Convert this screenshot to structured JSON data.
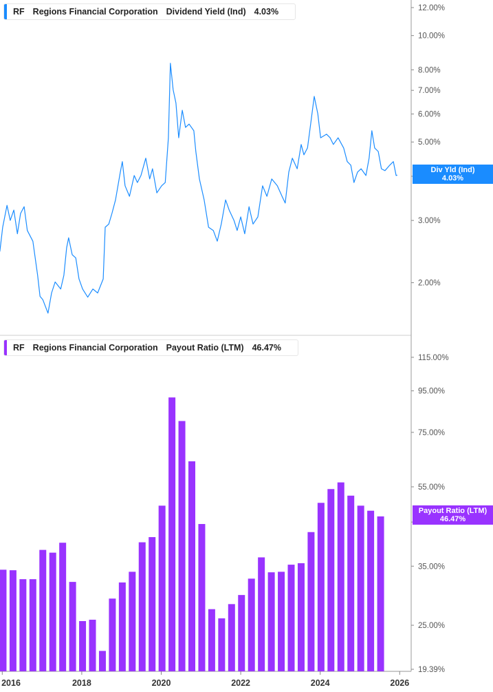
{
  "colors": {
    "yield_line": "#1a8cff",
    "payout_bars": "#9933ff",
    "axis": "#999999"
  },
  "top_legend": {
    "ticker": "RF",
    "company": "Regions Financial Corporation",
    "metric": "Dividend Yield (Ind)",
    "value": "4.03%"
  },
  "bottom_legend": {
    "ticker": "RF",
    "company": "Regions Financial Corporation",
    "metric": "Payout Ratio (LTM)",
    "value": "46.47%"
  },
  "top_tag": {
    "label": "Div Yld (Ind)",
    "value": "4.03%"
  },
  "bottom_tag": {
    "label": "Payout Ratio (LTM)",
    "value": "46.47%"
  },
  "chart_data": [
    {
      "type": "line",
      "series_label": "Dividend Yield (Ind)",
      "y_scale": "log",
      "y_unit": "%",
      "y_ticks": [
        "12.00%",
        "10.00%",
        "8.00%",
        "7.00%",
        "6.00%",
        "5.00%",
        "4.00%",
        "3.00%",
        "2.00%"
      ],
      "y_tick_values": [
        12,
        10,
        8,
        7,
        6,
        5,
        4,
        3,
        2
      ],
      "last_value": 4.03,
      "points": [
        [
          2015.94,
          2.45
        ],
        [
          2016.01,
          2.87
        ],
        [
          2016.12,
          3.31
        ],
        [
          2016.2,
          3.0
        ],
        [
          2016.29,
          3.21
        ],
        [
          2016.38,
          2.75
        ],
        [
          2016.46,
          3.14
        ],
        [
          2016.55,
          3.28
        ],
        [
          2016.63,
          2.81
        ],
        [
          2016.77,
          2.62
        ],
        [
          2016.89,
          2.1
        ],
        [
          2016.95,
          1.83
        ],
        [
          2017.02,
          1.79
        ],
        [
          2017.15,
          1.64
        ],
        [
          2017.24,
          1.87
        ],
        [
          2017.33,
          2.01
        ],
        [
          2017.47,
          1.92
        ],
        [
          2017.55,
          2.1
        ],
        [
          2017.62,
          2.51
        ],
        [
          2017.67,
          2.68
        ],
        [
          2017.76,
          2.4
        ],
        [
          2017.85,
          2.35
        ],
        [
          2017.93,
          2.05
        ],
        [
          2018.02,
          1.92
        ],
        [
          2018.15,
          1.82
        ],
        [
          2018.28,
          1.92
        ],
        [
          2018.4,
          1.87
        ],
        [
          2018.54,
          2.05
        ],
        [
          2018.59,
          2.87
        ],
        [
          2018.68,
          2.93
        ],
        [
          2018.76,
          3.14
        ],
        [
          2018.85,
          3.43
        ],
        [
          2018.97,
          4.11
        ],
        [
          2019.02,
          4.4
        ],
        [
          2019.09,
          3.76
        ],
        [
          2019.2,
          3.51
        ],
        [
          2019.32,
          4.02
        ],
        [
          2019.4,
          3.84
        ],
        [
          2019.49,
          4.02
        ],
        [
          2019.61,
          4.5
        ],
        [
          2019.71,
          3.93
        ],
        [
          2019.78,
          4.2
        ],
        [
          2019.89,
          3.59
        ],
        [
          2020.01,
          3.76
        ],
        [
          2020.1,
          3.84
        ],
        [
          2020.18,
          5.14
        ],
        [
          2020.23,
          8.35
        ],
        [
          2020.3,
          7.03
        ],
        [
          2020.37,
          6.44
        ],
        [
          2020.44,
          5.14
        ],
        [
          2020.53,
          6.15
        ],
        [
          2020.61,
          5.5
        ],
        [
          2020.7,
          5.62
        ],
        [
          2020.82,
          5.38
        ],
        [
          2020.87,
          4.7
        ],
        [
          2020.96,
          3.93
        ],
        [
          2021.08,
          3.43
        ],
        [
          2021.19,
          2.87
        ],
        [
          2021.31,
          2.81
        ],
        [
          2021.41,
          2.62
        ],
        [
          2021.51,
          2.93
        ],
        [
          2021.62,
          3.43
        ],
        [
          2021.71,
          3.21
        ],
        [
          2021.83,
          3.0
        ],
        [
          2021.91,
          2.81
        ],
        [
          2022.0,
          3.07
        ],
        [
          2022.1,
          2.75
        ],
        [
          2022.21,
          3.28
        ],
        [
          2022.31,
          2.93
        ],
        [
          2022.43,
          3.07
        ],
        [
          2022.55,
          3.76
        ],
        [
          2022.66,
          3.51
        ],
        [
          2022.78,
          3.93
        ],
        [
          2022.92,
          3.76
        ],
        [
          2023.04,
          3.51
        ],
        [
          2023.12,
          3.36
        ],
        [
          2023.21,
          4.11
        ],
        [
          2023.3,
          4.5
        ],
        [
          2023.42,
          4.2
        ],
        [
          2023.52,
          4.92
        ],
        [
          2023.59,
          4.6
        ],
        [
          2023.68,
          4.81
        ],
        [
          2023.76,
          5.62
        ],
        [
          2023.85,
          6.73
        ],
        [
          2023.94,
          6.01
        ],
        [
          2024.01,
          5.14
        ],
        [
          2024.16,
          5.26
        ],
        [
          2024.25,
          5.14
        ],
        [
          2024.33,
          4.92
        ],
        [
          2024.45,
          5.14
        ],
        [
          2024.59,
          4.81
        ],
        [
          2024.68,
          4.4
        ],
        [
          2024.77,
          4.3
        ],
        [
          2024.85,
          3.84
        ],
        [
          2024.94,
          4.11
        ],
        [
          2025.03,
          4.2
        ],
        [
          2025.15,
          4.02
        ],
        [
          2025.23,
          4.5
        ],
        [
          2025.3,
          5.38
        ],
        [
          2025.37,
          4.81
        ],
        [
          2025.46,
          4.7
        ],
        [
          2025.54,
          4.2
        ],
        [
          2025.63,
          4.15
        ],
        [
          2025.75,
          4.3
        ],
        [
          2025.84,
          4.4
        ],
        [
          2025.91,
          4.02
        ],
        [
          2025.94,
          4.03
        ]
      ]
    },
    {
      "type": "bar",
      "series_label": "Payout Ratio (LTM)",
      "y_scale": "log",
      "y_unit": "%",
      "y_ticks": [
        "115.00%",
        "95.00%",
        "75.00%",
        "55.00%",
        "45.00%",
        "35.00%",
        "25.00%",
        "19.39%"
      ],
      "y_tick_values": [
        115,
        95,
        75,
        55,
        45,
        35,
        25,
        19.39
      ],
      "ylim": [
        19.39,
        115
      ],
      "last_value": 46.47,
      "categories": [
        "2015-Q4",
        "2016-Q1",
        "2016-Q2",
        "2016-Q3",
        "2016-Q4",
        "2017-Q1",
        "2017-Q2",
        "2017-Q3",
        "2017-Q4",
        "2018-Q1",
        "2018-Q2",
        "2018-Q3",
        "2018-Q4",
        "2019-Q1",
        "2019-Q2",
        "2019-Q3",
        "2019-Q4",
        "2020-Q1",
        "2020-Q2",
        "2020-Q3",
        "2020-Q4",
        "2021-Q1",
        "2021-Q2",
        "2021-Q3",
        "2021-Q4",
        "2022-Q1",
        "2022-Q2",
        "2022-Q3",
        "2022-Q4",
        "2023-Q1",
        "2023-Q2",
        "2023-Q3",
        "2023-Q4",
        "2024-Q1",
        "2024-Q2",
        "2024-Q3",
        "2024-Q4",
        "2025-Q1",
        "2025-Q2",
        "2025-Q3"
      ],
      "values": [
        34.5,
        34.3,
        34.2,
        32.5,
        32.5,
        38.4,
        37.8,
        40.0,
        32.0,
        25.6,
        25.8,
        21.6,
        29.1,
        31.9,
        33.9,
        40.1,
        41.3,
        49.4,
        91.5,
        80.0,
        63.6,
        44.5,
        27.4,
        26.0,
        28.2,
        29.7,
        32.6,
        36.8,
        33.8,
        33.9,
        35.3,
        35.6,
        42.5,
        50.2,
        54.3,
        56.4,
        52.3,
        49.4,
        48.0,
        46.47
      ]
    }
  ],
  "x_axis": {
    "ticks": [
      "2016",
      "2018",
      "2020",
      "2022",
      "2024",
      "2026"
    ],
    "tick_values": [
      2016,
      2018,
      2020,
      2022,
      2024,
      2026
    ]
  }
}
